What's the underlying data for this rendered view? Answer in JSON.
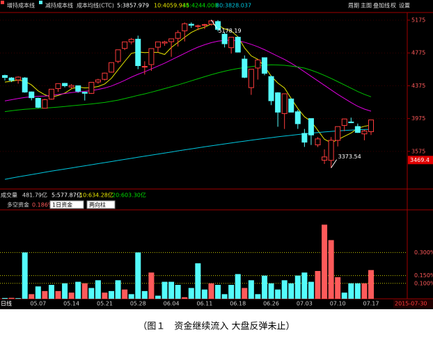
{
  "header": {
    "items": [
      "增持成本线",
      "减持成本线",
      "成本均线(CTC)",
      "5:3857.979",
      "10:4059.945",
      "34:4244.008",
      "80:3828.037"
    ],
    "menu": [
      "周期",
      "主图",
      "叠加线",
      "权",
      "设置"
    ]
  },
  "volume_row": [
    "成交量",
    "481.79亿",
    "5:577.87亿",
    "10:634.28亿",
    "20:603.30亿"
  ],
  "fund_row": {
    "name": "多空资金",
    "current": "0.186%",
    "buttons": [
      "1日资金",
      "两向柱"
    ]
  },
  "period": "日线",
  "date_box": "2015-07-30",
  "caption": "（图１　资金继续流入 大盘反弹未止）",
  "chart_data": [
    {
      "type": "candlestick",
      "categories": [
        null,
        null,
        null,
        null,
        null,
        "05.07",
        null,
        null,
        null,
        null,
        "05.14",
        null,
        null,
        null,
        null,
        "05.21",
        null,
        null,
        null,
        null,
        "05.28",
        null,
        null,
        null,
        null,
        "06.04",
        null,
        null,
        null,
        null,
        "06.11",
        null,
        null,
        null,
        null,
        "06.18",
        null,
        null,
        null,
        null,
        "06.26",
        null,
        null,
        null,
        null,
        "07.03",
        null,
        null,
        null,
        null,
        "07.10",
        null,
        null,
        null,
        null,
        "07.17"
      ],
      "open": [
        4500,
        4470,
        4446,
        4470,
        4300,
        4222,
        4101,
        4212,
        4340,
        4404,
        4360,
        4375,
        4296,
        4282,
        4421,
        4453,
        4541,
        4673,
        4830,
        4910,
        4943,
        4603,
        4633,
        4845,
        4895,
        4912,
        4953,
        5045,
        5125,
        5100,
        5115,
        5126,
        5158,
        5004,
        4839,
        4967,
        4700,
        4352,
        4591,
        4717,
        4487,
        4289,
        4036,
        4214,
        4058,
        3794,
        3975,
        3654,
        3467,
        3465,
        3709,
        3891,
        3933,
        3878,
        3788,
        3815
      ],
      "high": [
        4510,
        4480,
        4490,
        4480,
        4305,
        4230,
        4215,
        4335,
        4405,
        4410,
        4395,
        4378,
        4300,
        4420,
        4460,
        4535,
        4660,
        4815,
        4913,
        4958,
        4986,
        4673,
        4829,
        4911,
        4923,
        4948,
        5052,
        5147,
        5147,
        5120,
        5130,
        5178.19,
        5176,
        5030,
        4968,
        4977,
        4745,
        4577,
        4691,
        4720,
        4500,
        4297,
        4280,
        4214,
        4081,
        3848,
        3975,
        3749,
        3599,
        3749,
        3877,
        3975,
        3986,
        3914,
        3837,
        3958
      ],
      "low": [
        4440,
        4420,
        4400,
        4290,
        4197,
        4102,
        4098,
        4205,
        4300,
        4355,
        4340,
        4290,
        4195,
        4276,
        4400,
        4440,
        4535,
        4650,
        4810,
        4880,
        4577,
        4512,
        4556,
        4780,
        4862,
        4728,
        4853,
        4915,
        5080,
        5052,
        5066,
        5109,
        5039,
        4842,
        4767,
        4780,
        4468,
        4264,
        4450,
        4503,
        4139,
        3875,
        3848,
        4051,
        3849,
        3629,
        3653,
        3628,
        3421,
        3373.54,
        3635,
        3820,
        3920,
        3800,
        3710,
        3775
      ],
      "close": [
        4476,
        4441,
        4480,
        4298,
        4229,
        4112,
        4205,
        4333,
        4401,
        4375,
        4378,
        4308,
        4283,
        4417,
        4446,
        4529,
        4657,
        4813,
        4910,
        4941,
        4620,
        4611,
        4828,
        4910,
        4909,
        4947,
        5023,
        5131,
        5113,
        5106,
        5121,
        5166,
        5062,
        4887,
        4967,
        4785,
        4478,
        4576,
        4690,
        4527,
        4192,
        4053,
        4277,
        4053,
        3912,
        3687,
        3775,
        3727,
        3507,
        3710,
        3877,
        3970,
        3924,
        3805,
        3823,
        3958
      ],
      "up_color": "#ff3c3c",
      "down_color": "#54fcfc",
      "lines": [
        {
          "color": "#e8e800",
          "values": [
            4420,
            4430,
            4445,
            4430,
            4385,
            4312,
            4265,
            4235,
            4256,
            4285,
            4338,
            4359,
            4349,
            4352,
            4366,
            4397,
            4466,
            4570,
            4671,
            4770,
            4788,
            4779,
            4782,
            4782,
            4756,
            4841,
            4904,
            4966,
            5025,
            5064,
            5088,
            5127,
            5114,
            5068,
            5041,
            4973,
            4836,
            4739,
            4697,
            4611,
            4493,
            4408,
            4348,
            4220,
            4097,
            3996,
            3941,
            3831,
            3722,
            3681,
            3717,
            3758,
            3798,
            3857,
            3880,
            3896
          ]
        },
        {
          "color": "#e000e0",
          "values": [
            4190,
            4205,
            4220,
            4232,
            4240,
            4246,
            4250,
            4258,
            4268,
            4280,
            4292,
            4300,
            4306,
            4316,
            4330,
            4348,
            4372,
            4405,
            4440,
            4480,
            4515,
            4545,
            4580,
            4615,
            4650,
            4690,
            4730,
            4770,
            4810,
            4845,
            4875,
            4900,
            4918,
            4928,
            4930,
            4925,
            4905,
            4880,
            4850,
            4815,
            4775,
            4735,
            4695,
            4650,
            4600,
            4545,
            4490,
            4435,
            4380,
            4325,
            4270,
            4220,
            4170,
            4125,
            4090,
            4065
          ]
        },
        {
          "color": "#00c000",
          "values": [
            4060,
            4070,
            4080,
            4088,
            4094,
            4098,
            4102,
            4108,
            4115,
            4122,
            4130,
            4138,
            4145,
            4153,
            4162,
            4172,
            4185,
            4200,
            4218,
            4238,
            4258,
            4276,
            4296,
            4318,
            4340,
            4362,
            4385,
            4410,
            4435,
            4460,
            4485,
            4510,
            4532,
            4552,
            4570,
            4585,
            4597,
            4608,
            4618,
            4625,
            4630,
            4628,
            4624,
            4615,
            4604,
            4590,
            4565,
            4535,
            4500,
            4465,
            4425,
            4385,
            4345,
            4305,
            4270,
            4240
          ]
        },
        {
          "color": "#00c8e0",
          "values": [
            3234,
            3249,
            3264,
            3278,
            3292,
            3306,
            3320,
            3334,
            3347,
            3360,
            3373,
            3386,
            3399,
            3412,
            3425,
            3438,
            3451,
            3464,
            3477,
            3490,
            3503,
            3516,
            3529,
            3542,
            3555,
            3568,
            3581,
            3594,
            3606,
            3618,
            3630,
            3642,
            3654,
            3666,
            3678,
            3689,
            3700,
            3711,
            3722,
            3732,
            3742,
            3752,
            3762,
            3771,
            3780,
            3789,
            3797,
            3805,
            3812,
            3818,
            3824,
            3829,
            3834,
            3838,
            3841,
            3844
          ]
        }
      ],
      "ylim": [
        3116,
        5268
      ],
      "yticks": [
        3575,
        3975,
        4375,
        4775,
        5175
      ],
      "annotations": [
        {
          "text": 5178.19,
          "index": 31,
          "at": "high"
        },
        {
          "text": 3373.54,
          "index": 49,
          "at": "low"
        }
      ],
      "price_tag": 3469.4
    },
    {
      "type": "bar",
      "values": [
        0.005,
        0.006,
        0.004,
        0.3,
        0.03,
        0.08,
        0.05,
        0.09,
        0.05,
        0.1,
        0.04,
        0.11,
        0.1,
        0.07,
        0.12,
        0.04,
        0.05,
        0.12,
        0.06,
        0.03,
        0.3,
        0.05,
        0.17,
        0.02,
        0.11,
        0.11,
        0.09,
        0.01,
        0.07,
        0.23,
        0.06,
        0.1,
        0.09,
        0.03,
        0.09,
        0.16,
        0.07,
        0.12,
        0.03,
        0.15,
        0.1,
        0.06,
        0.12,
        0.1,
        0.15,
        0.17,
        0.11,
        0.18,
        0.48,
        0.38,
        0.14,
        0.04,
        0.1,
        0.1,
        0.1,
        0.186
      ],
      "colors": [
        "#54fcfc",
        "#ff5a5a",
        "#54fcfc",
        "#54fcfc",
        "#ff5a5a",
        "#54fcfc",
        "#ff5a5a",
        "#54fcfc",
        "#ff5a5a",
        "#54fcfc",
        "#ff5a5a",
        "#54fcfc",
        "#ff5a5a",
        "#54fcfc",
        "#54fcfc",
        "#ff5a5a",
        "#54fcfc",
        "#54fcfc",
        "#ff5a5a",
        "#54fcfc",
        "#54fcfc",
        "#54fcfc",
        "#ff5a5a",
        "#54fcfc",
        "#54fcfc",
        "#54fcfc",
        "#54fcfc",
        "#ff5a5a",
        "#54fcfc",
        "#54fcfc",
        "#54fcfc",
        "#ff5a5a",
        "#54fcfc",
        "#54fcfc",
        "#54fcfc",
        "#54fcfc",
        "#ff5a5a",
        "#54fcfc",
        "#54fcfc",
        "#54fcfc",
        "#54fcfc",
        "#54fcfc",
        "#54fcfc",
        "#54fcfc",
        "#54fcfc",
        "#54fcfc",
        "#54fcfc",
        "#ff5a5a",
        "#ff5a5a",
        "#ff5a5a",
        "#ff5a5a",
        "#54fcfc",
        "#54fcfc",
        "#54fcfc",
        "#ff5a5a",
        "#ff5a5a"
      ],
      "ylim": [
        0,
        0.576
      ],
      "yticks": [
        {
          "value": 0.1,
          "label": "0.100%"
        },
        {
          "value": 0.15,
          "label": "0.150%"
        },
        {
          "value": 0.3,
          "label": "0.300%"
        }
      ],
      "grid_color": "#c8c800"
    }
  ]
}
